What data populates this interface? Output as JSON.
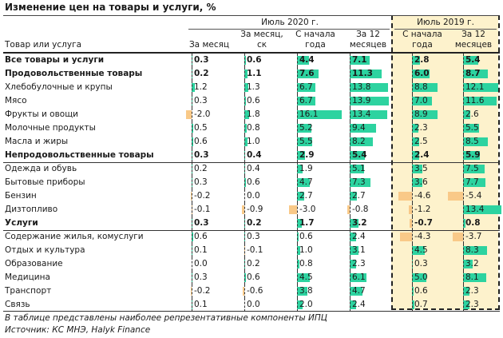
{
  "title": "Изменение цен на товары и услуги, %",
  "groups": {
    "g2020": "Июль 2020 г.",
    "g2019": "Июль 2019 г."
  },
  "headers": {
    "item": "Товар или услуга",
    "c0": [
      "За месяц"
    ],
    "c1": [
      "За месяц,",
      "ск"
    ],
    "c2": [
      "С начала",
      "года"
    ],
    "c3": [
      "За 12",
      "месяцев"
    ],
    "c4": [
      "С начала",
      "года"
    ],
    "c5": [
      "За 12",
      "месяцев"
    ]
  },
  "colors": {
    "positive": "#2dd3a0",
    "negative": "#f9c988",
    "highlight": "#fdf2cc"
  },
  "rows": [
    {
      "label": "Все товары и услуги",
      "bold": true,
      "values": [
        "0.3",
        "0.6",
        "4.4",
        "7.1",
        "2.8",
        "5.4"
      ]
    },
    {
      "label": "Продовольственные товары",
      "bold": true,
      "values": [
        "0.2",
        "1.1",
        "7.6",
        "11.3",
        "6.0",
        "8.7"
      ]
    },
    {
      "label": "Хлебобулочные и крупы",
      "bold": false,
      "values": [
        "1.2",
        "1.3",
        "6.7",
        "13.8",
        "8.8",
        "12.1"
      ]
    },
    {
      "label": "Мясо",
      "bold": false,
      "values": [
        "0.3",
        "0.6",
        "6.7",
        "13.9",
        "7.0",
        "11.6"
      ]
    },
    {
      "label": "Фрукты и овощи",
      "bold": false,
      "values": [
        "-2.0",
        "1.8",
        "16.1",
        "13.4",
        "8.9",
        "2.6"
      ]
    },
    {
      "label": "Молочные продукты",
      "bold": false,
      "values": [
        "0.5",
        "0.8",
        "5.2",
        "9.4",
        "2.3",
        "5.5"
      ]
    },
    {
      "label": "Масла и жиры",
      "bold": false,
      "values": [
        "0.6",
        "1.0",
        "5.5",
        "8.2",
        "2.5",
        "8.5"
      ]
    },
    {
      "label": "Непродовольственные товары",
      "bold": true,
      "values": [
        "0.3",
        "0.4",
        "2.9",
        "5.4",
        "2.4",
        "5.9"
      ]
    },
    {
      "label": "Одежда и обувь",
      "bold": false,
      "values": [
        "0.2",
        "0.4",
        "1.9",
        "5.1",
        "3.5",
        "7.5"
      ]
    },
    {
      "label": "Бытовые приборы",
      "bold": false,
      "values": [
        "0.3",
        "0.6",
        "4.7",
        "7.3",
        "3.6",
        "7.7"
      ]
    },
    {
      "label": "Бензин",
      "bold": false,
      "values": [
        "-0.2",
        "0.0",
        "2.7",
        "2.7",
        "-4.6",
        "-5.4"
      ]
    },
    {
      "label": "Дизтопливо",
      "bold": false,
      "values": [
        "-0.1",
        "-0.9",
        "-3.0",
        "-0.8",
        "-1.2",
        "13.4"
      ]
    },
    {
      "label": "Услуги",
      "bold": true,
      "values": [
        "0.3",
        "0.2",
        "1.7",
        "3.2",
        "-0.7",
        "0.8"
      ]
    },
    {
      "label": "Содержание жилья, комуслуги",
      "bold": false,
      "values": [
        "0.6",
        "0.3",
        "0.6",
        "2.4",
        "-4.3",
        "-3.7"
      ]
    },
    {
      "label": "Отдых и культура",
      "bold": false,
      "values": [
        "0.1",
        "-0.1",
        "1.0",
        "3.1",
        "4.5",
        "8.3"
      ]
    },
    {
      "label": "Образование",
      "bold": false,
      "values": [
        "0.0",
        "0.2",
        "0.8",
        "2.3",
        "0.3",
        "3.2"
      ]
    },
    {
      "label": "Медицина",
      "bold": false,
      "values": [
        "0.3",
        "0.6",
        "4.5",
        "6.1",
        "5.0",
        "8.1"
      ]
    },
    {
      "label": "Транспорт",
      "bold": false,
      "values": [
        "-0.2",
        "-0.6",
        "3.8",
        "4.7",
        "0.6",
        "2.3"
      ]
    },
    {
      "label": "Связь",
      "bold": false,
      "values": [
        "0.1",
        "0.0",
        "2.0",
        "2.4",
        "0.7",
        "2.3"
      ]
    }
  ],
  "footnotes": [
    "В таблице представлены наиболее репрезентативные компоненты ИПЦ",
    "Источник: КС МНЭ, Halyk Finance"
  ]
}
